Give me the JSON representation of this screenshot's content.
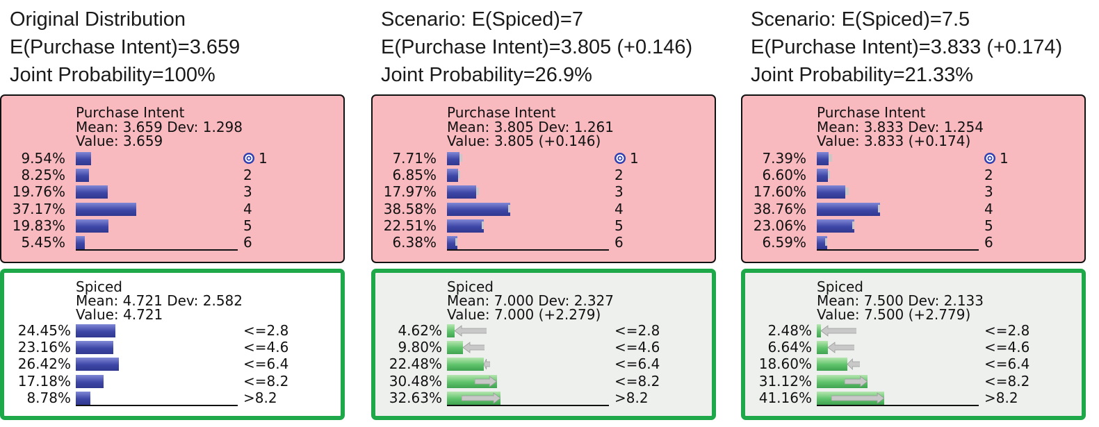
{
  "panels": [
    {
      "header": [
        "Original Distribution",
        "E(Purchase Intent)=3.659",
        "Joint Probability=100%"
      ],
      "purchase_intent": {
        "title": "Purchase Intent",
        "stats": "Mean: 3.659 Dev: 1.298",
        "value": "Value: 3.659",
        "rows": [
          {
            "pct": "9.54%",
            "label": "1",
            "value": 9.54,
            "baseline": 9.54
          },
          {
            "pct": "8.25%",
            "label": "2",
            "value": 8.25,
            "baseline": 8.25
          },
          {
            "pct": "19.76%",
            "label": "3",
            "value": 19.76,
            "baseline": 19.76
          },
          {
            "pct": "37.17%",
            "label": "4",
            "value": 37.17,
            "baseline": 37.17
          },
          {
            "pct": "19.83%",
            "label": "5",
            "value": 19.83,
            "baseline": 19.83
          },
          {
            "pct": "5.45%",
            "label": "6",
            "value": 5.45,
            "baseline": 5.45
          }
        ]
      },
      "spiced": {
        "title": "Spiced",
        "stats": "Mean: 4.721 Dev: 2.582",
        "value": "Value: 4.721",
        "style": "white",
        "rows": [
          {
            "pct": "24.45%",
            "label": "<=2.8",
            "value": 24.45,
            "baseline": 24.45
          },
          {
            "pct": "23.16%",
            "label": "<=4.6",
            "value": 23.16,
            "baseline": 23.16
          },
          {
            "pct": "26.42%",
            "label": "<=6.4",
            "value": 26.42,
            "baseline": 26.42
          },
          {
            "pct": "17.18%",
            "label": "<=8.2",
            "value": 17.18,
            "baseline": 17.18
          },
          {
            "pct": "8.78%",
            "label": ">8.2",
            "value": 8.78,
            "baseline": 8.78
          }
        ]
      }
    },
    {
      "header": [
        "Scenario: E(Spiced)=7",
        "E(Purchase Intent)=3.805 (+0.146)",
        "Joint Probability=26.9%"
      ],
      "purchase_intent": {
        "title": "Purchase Intent",
        "stats": "Mean: 3.805 Dev: 1.261",
        "value": "Value: 3.805 (+0.146)",
        "rows": [
          {
            "pct": "7.71%",
            "label": "1",
            "value": 7.71,
            "baseline": 9.54
          },
          {
            "pct": "6.85%",
            "label": "2",
            "value": 6.85,
            "baseline": 8.25
          },
          {
            "pct": "17.97%",
            "label": "3",
            "value": 17.97,
            "baseline": 19.76
          },
          {
            "pct": "38.58%",
            "label": "4",
            "value": 38.58,
            "baseline": 37.17
          },
          {
            "pct": "22.51%",
            "label": "5",
            "value": 22.51,
            "baseline": 19.83
          },
          {
            "pct": "6.38%",
            "label": "6",
            "value": 6.38,
            "baseline": 5.45
          }
        ]
      },
      "spiced": {
        "title": "Spiced",
        "stats": "Mean: 7.000 Dev: 2.327",
        "value": "Value: 7.000 (+2.279)",
        "style": "grey",
        "rows": [
          {
            "pct": "4.62%",
            "label": "<=2.8",
            "value": 4.62,
            "baseline": 24.45
          },
          {
            "pct": "9.80%",
            "label": "<=4.6",
            "value": 9.8,
            "baseline": 23.16
          },
          {
            "pct": "22.48%",
            "label": "<=6.4",
            "value": 22.48,
            "baseline": 26.42
          },
          {
            "pct": "30.48%",
            "label": "<=8.2",
            "value": 30.48,
            "baseline": 17.18
          },
          {
            "pct": "32.63%",
            "label": ">8.2",
            "value": 32.63,
            "baseline": 8.78
          }
        ]
      }
    },
    {
      "header": [
        "Scenario: E(Spiced)=7.5",
        "E(Purchase Intent)=3.833 (+0.174)",
        "Joint Probability=21.33%"
      ],
      "purchase_intent": {
        "title": "Purchase Intent",
        "stats": "Mean: 3.833 Dev: 1.254",
        "value": "Value: 3.833 (+0.174)",
        "rows": [
          {
            "pct": "7.39%",
            "label": "1",
            "value": 7.39,
            "baseline": 9.54
          },
          {
            "pct": "6.60%",
            "label": "2",
            "value": 6.6,
            "baseline": 8.25
          },
          {
            "pct": "17.60%",
            "label": "3",
            "value": 17.6,
            "baseline": 19.76
          },
          {
            "pct": "38.76%",
            "label": "4",
            "value": 38.76,
            "baseline": 37.17
          },
          {
            "pct": "23.06%",
            "label": "5",
            "value": 23.06,
            "baseline": 19.83
          },
          {
            "pct": "6.59%",
            "label": "6",
            "value": 6.59,
            "baseline": 5.45
          }
        ]
      },
      "spiced": {
        "title": "Spiced",
        "stats": "Mean: 7.500 Dev: 2.133",
        "value": "Value: 7.500 (+2.779)",
        "style": "grey",
        "rows": [
          {
            "pct": "2.48%",
            "label": "<=2.8",
            "value": 2.48,
            "baseline": 24.45
          },
          {
            "pct": "6.64%",
            "label": "<=4.6",
            "value": 6.64,
            "baseline": 23.16
          },
          {
            "pct": "18.60%",
            "label": "<=6.4",
            "value": 18.6,
            "baseline": 26.42
          },
          {
            "pct": "31.12%",
            "label": "<=8.2",
            "value": 31.12,
            "baseline": 17.18
          },
          {
            "pct": "41.16%",
            "label": ">8.2",
            "value": 41.16,
            "baseline": 8.78
          }
        ]
      }
    }
  ],
  "colors": {
    "purchase_node_bg": "#f8b9bf",
    "spiced_border": "#1fa84a",
    "blue_bar": "#3e47a6",
    "green_bar": "#5fc36b",
    "ghost": "#c8c8c8",
    "target_icon": "#2f3fb0"
  },
  "icons": {
    "target": "target-icon"
  }
}
